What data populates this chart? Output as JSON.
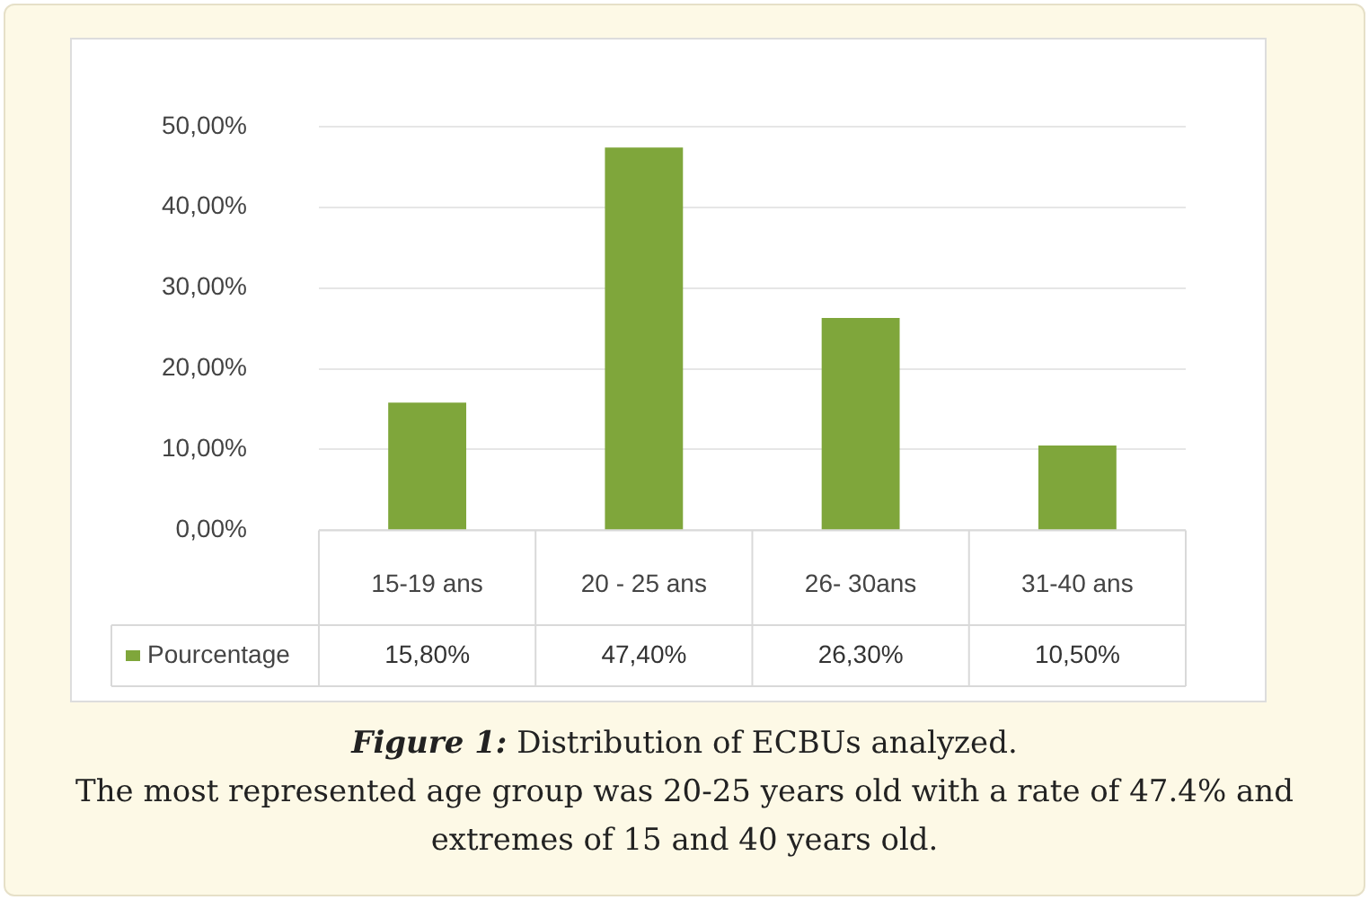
{
  "chart_data": {
    "type": "bar",
    "categories": [
      "15-19 ans",
      "20 - 25 ans",
      "26- 30ans",
      "31-40 ans"
    ],
    "series": [
      {
        "name": "Pourcentage",
        "color": "#7fa63b",
        "values": [
          15.8,
          47.4,
          26.3,
          10.5
        ],
        "value_labels": [
          "15,80%",
          "47,40%",
          "26,30%",
          "10,50%"
        ]
      }
    ],
    "ylim": [
      0,
      50
    ],
    "yticks": [
      {
        "value": 0,
        "label": "0,00%"
      },
      {
        "value": 10,
        "label": "10,00%"
      },
      {
        "value": 20,
        "label": "20,00%"
      },
      {
        "value": 30,
        "label": "30,00%"
      },
      {
        "value": 40,
        "label": "40,00%"
      },
      {
        "value": 50,
        "label": "50,00%"
      }
    ],
    "grid": "y",
    "legend": "bottom left",
    "annotations": [
      "Figure 1: Distribution of ECBUs analyzed.",
      "The most represented age group was 20-25 years old with a rate of 47.4% and extremes of 15 and 40 years old."
    ]
  }
}
